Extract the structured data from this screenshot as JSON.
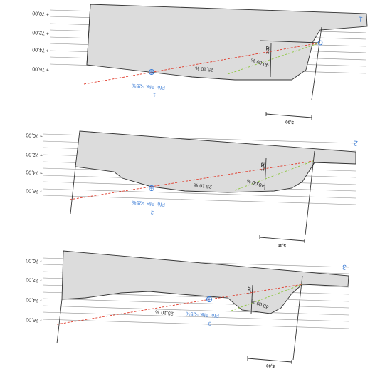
{
  "levels": [
    "+ 70,00",
    "+ 72,00",
    "+ 74,00",
    "+ 76,00"
  ],
  "sections": [
    {
      "number": "1",
      "blue_number": "1",
      "pile_label": "Pfü. Pfe. ≈25%",
      "slope_red": "25,10 %",
      "slope_green": "40,00 %",
      "dim_label": "1,37",
      "scale_label": "5,00"
    },
    {
      "number": "2",
      "blue_number": "2",
      "pile_label": "Pfü. Pfe. ≈25%",
      "slope_red": "25,10 %",
      "slope_green": "40,00 %",
      "dim_label": "1,92",
      "scale_label": "5,00"
    },
    {
      "number": "3",
      "blue_number": "3",
      "pile_label": "Pfü. Pfe. ≈25%",
      "slope_red": "25,10 %",
      "slope_green": "40,00 %",
      "dim_label": "1,37",
      "scale_label": "5,00"
    }
  ],
  "colors": {
    "fill": "#dcdcdc",
    "red": "#e03a2a",
    "green": "#8dc63f",
    "blue": "#3a7bd5",
    "line": "#333333",
    "grid": "#8c8c8c"
  }
}
